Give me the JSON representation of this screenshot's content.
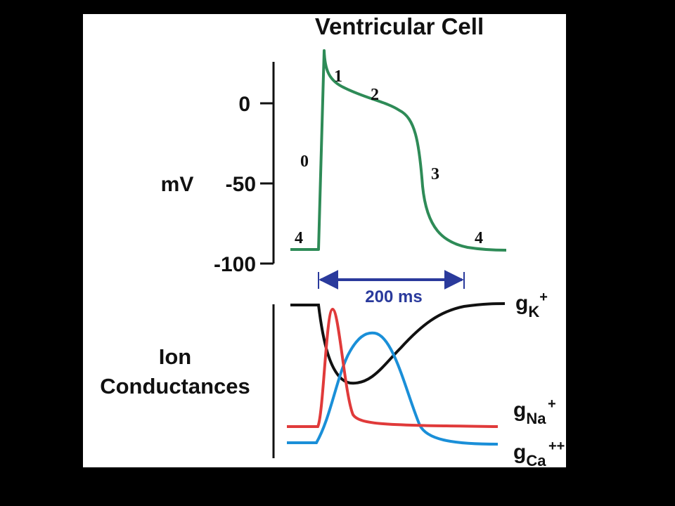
{
  "title": "Ventricular Cell",
  "voltage_axis": {
    "label": "mV",
    "ticks": [
      "0",
      "-50",
      "-100"
    ]
  },
  "phase_labels": [
    "0",
    "1",
    "2",
    "3",
    "4",
    "4"
  ],
  "duration": {
    "label": "200 ms"
  },
  "conductance_axis": {
    "label_line1": "Ion",
    "label_line2": "Conductances"
  },
  "conductances": [
    {
      "g": "g",
      "ion": "K",
      "charge": "+"
    },
    {
      "g": "g",
      "ion": "Na",
      "charge": "+"
    },
    {
      "g": "g",
      "ion": "Ca",
      "charge": "++"
    }
  ],
  "colors": {
    "background": "#000000",
    "panel": "#ffffff",
    "action_potential": "#2e8b57",
    "duration_arrow": "#2a3a9c",
    "gK": "#111111",
    "gNa": "#e03a3a",
    "gCa": "#1a8fd8"
  }
}
